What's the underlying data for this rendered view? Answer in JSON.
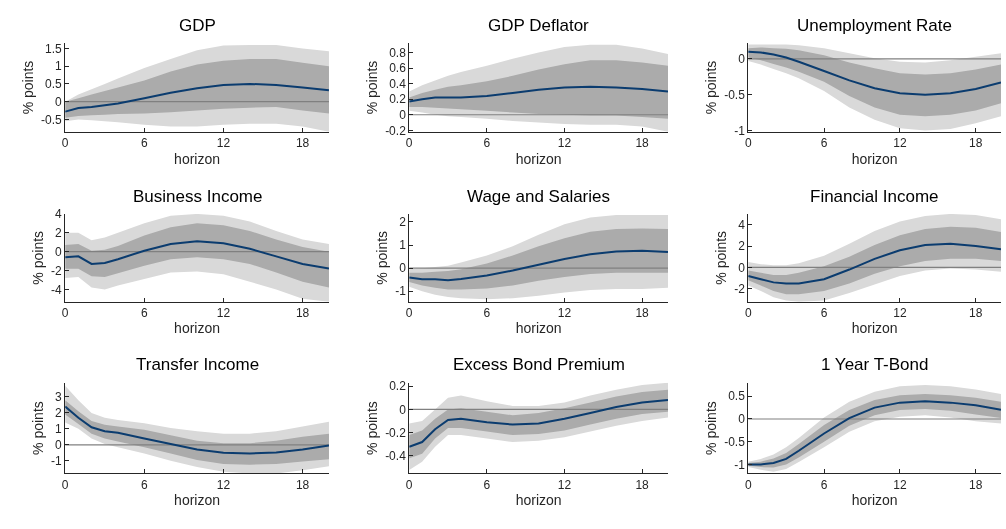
{
  "chart_data": [
    {
      "type": "line",
      "title": "GDP",
      "xlabel": "horizon",
      "ylabel": "% points",
      "xlim": [
        0,
        20
      ],
      "xticks": [
        0,
        6,
        12,
        18
      ],
      "ylim": [
        -0.85,
        1.65
      ],
      "yticks": [
        -0.5,
        0,
        0.5,
        1,
        1.5
      ],
      "x": [
        0,
        1,
        2,
        3,
        4,
        6,
        8,
        10,
        12,
        14,
        16,
        18,
        20
      ],
      "series": [
        {
          "color": "#d9d9d9",
          "values": [
            null,
            null,
            null,
            null,
            null,
            null,
            null,
            null,
            null,
            null,
            null,
            null,
            null
          ],
          "lower": [
            -0.55,
            -0.5,
            -0.52,
            -0.55,
            -0.58,
            -0.65,
            -0.7,
            -0.7,
            -0.65,
            -0.62,
            -0.62,
            -0.7,
            -0.85
          ],
          "upper": [
            0,
            0.2,
            0.35,
            0.5,
            0.65,
            0.95,
            1.2,
            1.45,
            1.58,
            1.6,
            1.6,
            1.5,
            1.42
          ]
        },
        {
          "color": "#ababab",
          "values": [
            null,
            null,
            null,
            null,
            null,
            null,
            null,
            null,
            null,
            null,
            null,
            null,
            null
          ],
          "lower": [
            -0.45,
            -0.4,
            -0.38,
            -0.37,
            -0.35,
            -0.33,
            -0.3,
            -0.25,
            -0.2,
            -0.17,
            -0.15,
            -0.25,
            -0.33
          ],
          "upper": [
            0,
            0.1,
            0.2,
            0.3,
            0.4,
            0.6,
            0.85,
            1.05,
            1.15,
            1.2,
            1.2,
            1.1,
            1.0
          ]
        },
        {
          "color": "#0b3c6f",
          "values": [
            -0.28,
            -0.18,
            -0.15,
            -0.1,
            -0.05,
            0.1,
            0.25,
            0.38,
            0.47,
            0.5,
            0.47,
            0.4,
            0.32
          ]
        }
      ],
      "ref_lines": [
        {
          "axis": "y",
          "value": 0,
          "color": "#808080"
        }
      ]
    },
    {
      "type": "line",
      "title": "GDP Deflator",
      "xlabel": "horizon",
      "ylabel": "% points",
      "xlim": [
        0,
        20
      ],
      "xticks": [
        0,
        6,
        12,
        18
      ],
      "ylim": [
        -0.22,
        0.92
      ],
      "yticks": [
        -0.2,
        0,
        0.2,
        0.4,
        0.6,
        0.8
      ],
      "x": [
        0,
        1,
        2,
        3,
        4,
        6,
        8,
        10,
        12,
        14,
        16,
        18,
        20
      ],
      "series": [
        {
          "color": "#d9d9d9",
          "values": [
            null,
            null,
            null,
            null,
            null,
            null,
            null,
            null,
            null,
            null,
            null,
            null,
            null
          ],
          "lower": [
            0.05,
            0.03,
            0,
            -0.02,
            -0.03,
            -0.05,
            -0.08,
            -0.1,
            -0.12,
            -0.13,
            -0.13,
            -0.15,
            -0.22
          ],
          "upper": [
            0.3,
            0.38,
            0.44,
            0.5,
            0.55,
            0.63,
            0.72,
            0.8,
            0.87,
            0.9,
            0.9,
            0.85,
            0.78
          ]
        },
        {
          "color": "#ababab",
          "values": [
            null,
            null,
            null,
            null,
            null,
            null,
            null,
            null,
            null,
            null,
            null,
            null,
            null
          ],
          "lower": [
            0.1,
            0.1,
            0.09,
            0.08,
            0.07,
            0.05,
            0.03,
            0.01,
            0,
            -0.01,
            -0.01,
            -0.03,
            -0.05
          ],
          "upper": [
            0.22,
            0.28,
            0.32,
            0.36,
            0.38,
            0.43,
            0.5,
            0.58,
            0.65,
            0.7,
            0.7,
            0.67,
            0.63
          ]
        },
        {
          "color": "#0b3c6f",
          "values": [
            0.17,
            0.2,
            0.22,
            0.22,
            0.22,
            0.24,
            0.28,
            0.32,
            0.35,
            0.36,
            0.35,
            0.33,
            0.3
          ]
        }
      ],
      "ref_lines": [
        {
          "axis": "y",
          "value": 0,
          "color": "#808080"
        }
      ]
    },
    {
      "type": "line",
      "title": "Unemployment Rate",
      "xlabel": "horizon",
      "ylabel": "% points",
      "xlim": [
        0,
        20
      ],
      "xticks": [
        0,
        6,
        12,
        18
      ],
      "ylim": [
        -1.02,
        0.22
      ],
      "yticks": [
        -1,
        -0.5,
        0
      ],
      "x": [
        0,
        1,
        2,
        3,
        4,
        6,
        8,
        10,
        12,
        14,
        16,
        18,
        20
      ],
      "series": [
        {
          "color": "#d9d9d9",
          "values": [
            null,
            null,
            null,
            null,
            null,
            null,
            null,
            null,
            null,
            null,
            null,
            null,
            null
          ],
          "lower": [
            -0.03,
            -0.08,
            -0.14,
            -0.2,
            -0.27,
            -0.45,
            -0.68,
            -0.85,
            -0.97,
            -1.0,
            -0.98,
            -0.9,
            -0.8
          ],
          "upper": [
            0.2,
            0.2,
            0.2,
            0.2,
            0.19,
            0.15,
            0.08,
            0.01,
            -0.04,
            -0.05,
            -0.02,
            0.03,
            0.08
          ]
        },
        {
          "color": "#ababab",
          "values": [
            null,
            null,
            null,
            null,
            null,
            null,
            null,
            null,
            null,
            null,
            null,
            null,
            null
          ],
          "lower": [
            0.02,
            -0.02,
            -0.07,
            -0.12,
            -0.18,
            -0.32,
            -0.52,
            -0.68,
            -0.78,
            -0.8,
            -0.78,
            -0.72,
            -0.62
          ],
          "upper": [
            0.15,
            0.16,
            0.15,
            0.14,
            0.12,
            0.05,
            -0.05,
            -0.13,
            -0.2,
            -0.22,
            -0.2,
            -0.15,
            -0.08
          ]
        },
        {
          "color": "#0b3c6f",
          "values": [
            0.1,
            0.09,
            0.06,
            0.02,
            -0.04,
            -0.17,
            -0.3,
            -0.41,
            -0.48,
            -0.5,
            -0.48,
            -0.42,
            -0.33
          ]
        }
      ],
      "ref_lines": [
        {
          "axis": "y",
          "value": 0,
          "color": "#808080"
        }
      ]
    },
    {
      "type": "line",
      "title": "Business Income",
      "xlabel": "horizon",
      "ylabel": "% points",
      "xlim": [
        0,
        20
      ],
      "xticks": [
        0,
        6,
        12,
        18
      ],
      "ylim": [
        -5.3,
        4
      ],
      "yticks": [
        -4,
        -2,
        0,
        2,
        4
      ],
      "x": [
        0,
        1,
        2,
        3,
        4,
        6,
        8,
        10,
        12,
        14,
        16,
        18,
        20
      ],
      "series": [
        {
          "color": "#d9d9d9",
          "values": [
            null,
            null,
            null,
            null,
            null,
            null,
            null,
            null,
            null,
            null,
            null,
            null,
            null
          ],
          "lower": [
            -2.8,
            -2.7,
            -3.8,
            -4.0,
            -3.6,
            -2.9,
            -2.2,
            -2.1,
            -2.4,
            -3.2,
            -4.0,
            -5.0,
            -5.3
          ],
          "upper": [
            2.0,
            2.0,
            1.2,
            1.5,
            2.0,
            3.0,
            3.8,
            4.0,
            3.8,
            3.2,
            2.2,
            1.3,
            0.8
          ]
        },
        {
          "color": "#ababab",
          "values": [
            null,
            null,
            null,
            null,
            null,
            null,
            null,
            null,
            null,
            null,
            null,
            null,
            null
          ],
          "lower": [
            -1.8,
            -1.8,
            -2.6,
            -2.7,
            -2.3,
            -1.5,
            -0.8,
            -0.6,
            -0.8,
            -1.3,
            -2.2,
            -3.2,
            -3.8
          ],
          "upper": [
            0.7,
            0.8,
            0.1,
            0.2,
            0.6,
            1.7,
            2.6,
            3.0,
            2.8,
            2.2,
            1.3,
            0.5,
            0
          ]
        },
        {
          "color": "#0b3c6f",
          "values": [
            -0.6,
            -0.5,
            -1.3,
            -1.2,
            -0.8,
            0.1,
            0.8,
            1.1,
            0.9,
            0.3,
            -0.5,
            -1.3,
            -1.8
          ]
        }
      ],
      "ref_lines": [
        {
          "axis": "y",
          "value": 0,
          "color": "#808080"
        }
      ]
    },
    {
      "type": "line",
      "title": "Wage and Salaries",
      "xlabel": "horizon",
      "ylabel": "% points",
      "xlim": [
        0,
        20
      ],
      "xticks": [
        0,
        6,
        12,
        18
      ],
      "ylim": [
        -1.45,
        2.35
      ],
      "yticks": [
        -1,
        0,
        1,
        2
      ],
      "x": [
        0,
        1,
        2,
        3,
        4,
        6,
        8,
        10,
        12,
        14,
        16,
        18,
        20
      ],
      "series": [
        {
          "color": "#d9d9d9",
          "values": [
            null,
            null,
            null,
            null,
            null,
            null,
            null,
            null,
            null,
            null,
            null,
            null,
            null
          ],
          "lower": [
            -0.8,
            -1.0,
            -1.15,
            -1.25,
            -1.3,
            -1.35,
            -1.3,
            -1.2,
            -1.05,
            -0.95,
            -0.9,
            -0.9,
            -0.85
          ],
          "upper": [
            -0.05,
            0,
            0.05,
            0.1,
            0.25,
            0.55,
            0.95,
            1.45,
            1.9,
            2.2,
            2.3,
            2.3,
            2.3
          ]
        },
        {
          "color": "#ababab",
          "values": [
            null,
            null,
            null,
            null,
            null,
            null,
            null,
            null,
            null,
            null,
            null,
            null,
            null
          ],
          "lower": [
            -0.6,
            -0.75,
            -0.85,
            -0.92,
            -0.92,
            -0.88,
            -0.75,
            -0.55,
            -0.38,
            -0.25,
            -0.2,
            -0.2,
            -0.2
          ],
          "upper": [
            -0.2,
            -0.2,
            -0.15,
            -0.12,
            -0.05,
            0.2,
            0.55,
            0.95,
            1.3,
            1.58,
            1.7,
            1.72,
            1.7
          ]
        },
        {
          "color": "#0b3c6f",
          "values": [
            -0.4,
            -0.48,
            -0.48,
            -0.52,
            -0.47,
            -0.32,
            -0.1,
            0.15,
            0.4,
            0.6,
            0.72,
            0.75,
            0.7
          ]
        }
      ],
      "ref_lines": [
        {
          "axis": "y",
          "value": 0,
          "color": "#808080"
        }
      ]
    },
    {
      "type": "line",
      "title": "Financial Income",
      "xlabel": "horizon",
      "ylabel": "% points",
      "xlim": [
        0,
        20
      ],
      "xticks": [
        0,
        6,
        12,
        18
      ],
      "ylim": [
        -3.2,
        5
      ],
      "yticks": [
        -2,
        0,
        2,
        4
      ],
      "x": [
        0,
        1,
        2,
        3,
        4,
        6,
        8,
        10,
        12,
        14,
        16,
        18,
        20
      ],
      "series": [
        {
          "color": "#d9d9d9",
          "values": [
            null,
            null,
            null,
            null,
            null,
            null,
            null,
            null,
            null,
            null,
            null,
            null,
            null
          ],
          "lower": [
            -1.7,
            -2.2,
            -2.8,
            -3.1,
            -3.2,
            -3.1,
            -2.4,
            -1.6,
            -0.8,
            -0.3,
            -0.1,
            -0.2,
            -0.4
          ],
          "upper": [
            0.5,
            0.3,
            0.2,
            0.2,
            0.4,
            1.1,
            2.2,
            3.4,
            4.3,
            4.8,
            5.0,
            4.9,
            4.5
          ]
        },
        {
          "color": "#ababab",
          "values": [
            null,
            null,
            null,
            null,
            null,
            null,
            null,
            null,
            null,
            null,
            null,
            null,
            null
          ],
          "lower": [
            -1.2,
            -1.7,
            -2.2,
            -2.5,
            -2.5,
            -2.2,
            -1.5,
            -0.6,
            0.1,
            0.6,
            0.8,
            0.8,
            0.6
          ],
          "upper": [
            -0.3,
            -0.5,
            -0.7,
            -0.7,
            -0.5,
            0.1,
            1.0,
            2.1,
            3.0,
            3.6,
            3.8,
            3.7,
            3.3
          ]
        },
        {
          "color": "#0b3c6f",
          "values": [
            -0.8,
            -1.1,
            -1.4,
            -1.5,
            -1.5,
            -1.1,
            -0.2,
            0.8,
            1.6,
            2.1,
            2.2,
            2.0,
            1.7
          ]
        }
      ],
      "ref_lines": [
        {
          "axis": "y",
          "value": 0,
          "color": "#808080"
        }
      ]
    },
    {
      "type": "line",
      "title": "Transfer Income",
      "xlabel": "horizon",
      "ylabel": "% points",
      "xlim": [
        0,
        20
      ],
      "xticks": [
        0,
        6,
        12,
        18
      ],
      "ylim": [
        -1.8,
        3.9
      ],
      "yticks": [
        -1,
        0,
        1,
        2,
        3
      ],
      "x": [
        0,
        1,
        2,
        3,
        4,
        6,
        8,
        10,
        12,
        14,
        16,
        18,
        20
      ],
      "series": [
        {
          "color": "#d9d9d9",
          "values": [
            null,
            null,
            null,
            null,
            null,
            null,
            null,
            null,
            null,
            null,
            null,
            null,
            null
          ],
          "lower": [
            1.4,
            1.0,
            0.4,
            0.05,
            -0.15,
            -0.55,
            -1.0,
            -1.4,
            -1.7,
            -1.8,
            -1.8,
            -1.6,
            -1.35
          ],
          "upper": [
            3.7,
            2.8,
            2.0,
            1.7,
            1.55,
            1.35,
            1.05,
            0.85,
            0.7,
            0.7,
            0.85,
            1.15,
            1.45
          ]
        },
        {
          "color": "#ababab",
          "values": [
            null,
            null,
            null,
            null,
            null,
            null,
            null,
            null,
            null,
            null,
            null,
            null,
            null
          ],
          "lower": [
            1.9,
            1.3,
            0.7,
            0.4,
            0.2,
            -0.15,
            -0.55,
            -0.95,
            -1.2,
            -1.25,
            -1.2,
            -1.05,
            -0.9
          ],
          "upper": [
            2.8,
            2.1,
            1.5,
            1.25,
            1.15,
            0.95,
            0.6,
            0.25,
            0.1,
            0.1,
            0.25,
            0.5,
            0.7
          ]
        },
        {
          "color": "#0b3c6f",
          "values": [
            2.4,
            1.7,
            1.1,
            0.85,
            0.75,
            0.4,
            0.05,
            -0.3,
            -0.5,
            -0.55,
            -0.48,
            -0.3,
            -0.05
          ]
        }
      ],
      "ref_lines": [
        {
          "axis": "y",
          "value": 0,
          "color": "#808080"
        }
      ]
    },
    {
      "type": "line",
      "title": "Excess Bond Premium",
      "xlabel": "horizon",
      "ylabel": "% points",
      "xlim": [
        0,
        20
      ],
      "xticks": [
        0,
        6,
        12,
        18
      ],
      "ylim": [
        -0.55,
        0.23
      ],
      "yticks": [
        -0.4,
        -0.2,
        0,
        0.2
      ],
      "x": [
        0,
        1,
        2,
        3,
        4,
        6,
        8,
        10,
        12,
        14,
        16,
        18,
        20
      ],
      "series": [
        {
          "color": "#d9d9d9",
          "values": [
            null,
            null,
            null,
            null,
            null,
            null,
            null,
            null,
            null,
            null,
            null,
            null,
            null
          ],
          "lower": [
            -0.52,
            -0.45,
            -0.32,
            -0.22,
            -0.22,
            -0.25,
            -0.28,
            -0.27,
            -0.24,
            -0.19,
            -0.14,
            -0.1,
            -0.07
          ],
          "upper": [
            -0.12,
            -0.1,
            0.0,
            0.1,
            0.12,
            0.07,
            0.03,
            0.03,
            0.06,
            0.12,
            0.17,
            0.21,
            0.23
          ]
        },
        {
          "color": "#ababab",
          "values": [
            null,
            null,
            null,
            null,
            null,
            null,
            null,
            null,
            null,
            null,
            null,
            null,
            null
          ],
          "lower": [
            -0.42,
            -0.38,
            -0.25,
            -0.16,
            -0.16,
            -0.19,
            -0.22,
            -0.21,
            -0.18,
            -0.13,
            -0.08,
            -0.04,
            -0.02
          ],
          "upper": [
            -0.22,
            -0.18,
            -0.08,
            0.0,
            0.01,
            -0.02,
            -0.05,
            -0.03,
            0.01,
            0.06,
            0.11,
            0.15,
            0.17
          ]
        },
        {
          "color": "#0b3c6f",
          "values": [
            -0.32,
            -0.28,
            -0.17,
            -0.09,
            -0.08,
            -0.11,
            -0.13,
            -0.12,
            -0.08,
            -0.03,
            0.02,
            0.06,
            0.08
          ]
        }
      ],
      "ref_lines": [
        {
          "axis": "y",
          "value": 0,
          "color": "#808080"
        }
      ]
    },
    {
      "type": "line",
      "title": "1 Year T-Bond",
      "xlabel": "horizon",
      "ylabel": "% points",
      "xlim": [
        0,
        20
      ],
      "xticks": [
        0,
        6,
        12,
        18
      ],
      "ylim": [
        -1.2,
        0.8
      ],
      "yticks": [
        -1,
        -0.5,
        0,
        0.5
      ],
      "x": [
        0,
        1,
        2,
        3,
        4,
        6,
        8,
        10,
        12,
        14,
        16,
        18,
        20
      ],
      "series": [
        {
          "color": "#d9d9d9",
          "values": [
            null,
            null,
            null,
            null,
            null,
            null,
            null,
            null,
            null,
            null,
            null,
            null,
            null
          ],
          "lower": [
            -1.06,
            -1.12,
            -1.16,
            -1.1,
            -0.95,
            -0.62,
            -0.28,
            -0.05,
            0.05,
            0.08,
            0.03,
            -0.05,
            -0.1
          ],
          "upper": [
            -0.94,
            -0.88,
            -0.78,
            -0.62,
            -0.42,
            0.03,
            0.38,
            0.6,
            0.72,
            0.75,
            0.72,
            0.65,
            0.55
          ]
        },
        {
          "color": "#ababab",
          "values": [
            null,
            null,
            null,
            null,
            null,
            null,
            null,
            null,
            null,
            null,
            null,
            null,
            null
          ],
          "lower": [
            -1.03,
            -1.06,
            -1.07,
            -1.0,
            -0.85,
            -0.5,
            -0.15,
            0.08,
            0.2,
            0.22,
            0.18,
            0.1,
            0.02
          ],
          "upper": [
            -0.97,
            -0.94,
            -0.87,
            -0.75,
            -0.55,
            -0.13,
            0.2,
            0.42,
            0.52,
            0.55,
            0.52,
            0.47,
            0.38
          ]
        },
        {
          "color": "#0b3c6f",
          "values": [
            -1.0,
            -1.0,
            -0.97,
            -0.88,
            -0.7,
            -0.32,
            0.02,
            0.25,
            0.36,
            0.39,
            0.36,
            0.3,
            0.2
          ]
        }
      ],
      "ref_lines": [
        {
          "axis": "y",
          "value": 0,
          "color": "#808080"
        }
      ]
    }
  ]
}
